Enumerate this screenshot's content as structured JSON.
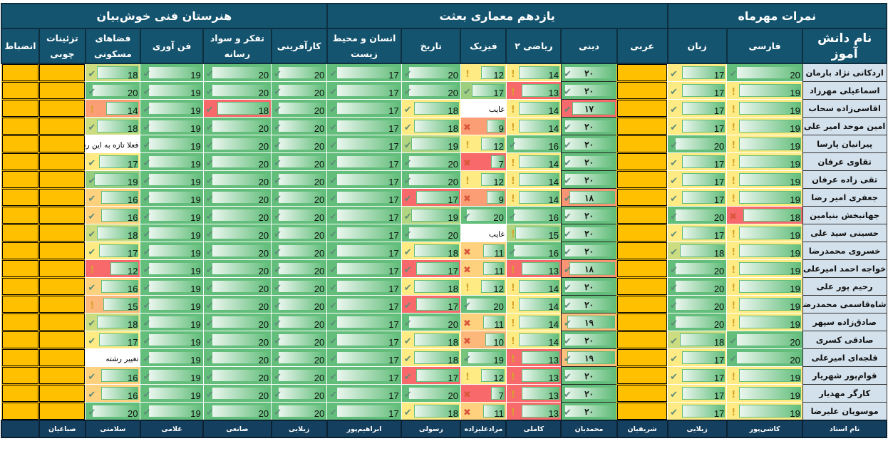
{
  "titles": {
    "group1": "نمرات مهرماه",
    "group2": "یازدهم معماری بعثت",
    "group3": "هنرستان فنی خوش‌بیان"
  },
  "name_header": "نام دانش آموز",
  "teacher_label": "نام استاد",
  "students": [
    "اردکانی نژاد بارمان",
    "اسماعیلی مهرزاد",
    "اقاسی‌زاده سحاب",
    "امین موحد  امیر علی",
    "پیرانیان پارسا",
    "تقاوی عرفان",
    "تقی زاده  عرفان",
    "جعفری  امیر رضا",
    "جهانبخش بنیامین",
    "حسینی سید علی",
    "خسروی محمدرضا",
    "خواجه احمد امیرعلی",
    "رحیم پور علی",
    "شاه‌قاسمی محمدرضا",
    "صادق‌زاده سپهر",
    "صادقی کسری",
    "قلجه‌ای امیرعلی",
    "قوام‌پور شهریار",
    "کارگر  مهدیار",
    "موسویان علیرضا"
  ],
  "colors": {
    "low": "#f8696b",
    "mid": "#ffeb84",
    "high": "#63be7b",
    "empty": "#ffc000"
  },
  "columns": [
    {
      "key": "farsi",
      "header": "فارسی",
      "teacher": "کاشی‌پور",
      "type": "bar",
      "icon_check_min": 20,
      "icon_warn_min": 19,
      "values": [
        20,
        19,
        19,
        19,
        19,
        19,
        19,
        19,
        18,
        19,
        19,
        19,
        19,
        19,
        19,
        20,
        20,
        19,
        19,
        19
      ]
    },
    {
      "key": "zaban",
      "header": "زبان",
      "teacher": "زیلایی",
      "type": "bar",
      "icon_check_min": 0,
      "icon_warn_min": 0,
      "values": [
        17,
        17,
        17,
        17,
        20,
        17,
        17,
        17,
        20,
        17,
        18,
        20,
        20,
        20,
        20,
        18,
        17,
        17,
        17,
        17
      ]
    },
    {
      "key": "arabi",
      "header": "عربی",
      "teacher": "شریفیان",
      "type": "empty"
    },
    {
      "key": "dini",
      "header": "دینی",
      "teacher": "محمدیان",
      "type": "dini",
      "icon_check_min": 0,
      "icon_warn_min": 0,
      "values": [
        "۲۰",
        "۲۰",
        "۱۷",
        "۲۰",
        "۲۰",
        "۲۰",
        "۲۰",
        "۱۸",
        "۲۰",
        "۲۰",
        "۲۰",
        "۱۸",
        "۲۰",
        "۲۰",
        "۱۹",
        "۲۰",
        "۱۹",
        "۲۰",
        "۲۰",
        "۲۰"
      ]
    },
    {
      "key": "riazi",
      "header": "ریاضی ۲",
      "teacher": "کاملی",
      "type": "bar",
      "icon_check_min": 16,
      "icon_warn_min": 13,
      "values": [
        14,
        13,
        14,
        14,
        16,
        14,
        14,
        14,
        16,
        15,
        16,
        13,
        14,
        14,
        14,
        14,
        13,
        13,
        13,
        13
      ]
    },
    {
      "key": "fizik",
      "header": "فیزیک",
      "teacher": "مرادعلیزاده",
      "type": "bar",
      "icon_check_min": 17,
      "icon_warn_min": 12,
      "values": [
        12,
        17,
        "غایب",
        9,
        12,
        7,
        12,
        9,
        20,
        "غایب",
        11,
        11,
        12,
        20,
        11,
        10,
        19,
        12,
        7,
        11
      ]
    },
    {
      "key": "tarikh",
      "header": "تاریخ",
      "teacher": "رسولی",
      "type": "bar",
      "icon_check_min": 0,
      "icon_warn_min": 0,
      "values": [
        20,
        20,
        18,
        18,
        19,
        20,
        20,
        17,
        19,
        20,
        18,
        17,
        18,
        17,
        20,
        18,
        18,
        17,
        20,
        18
      ]
    },
    {
      "key": "ensan",
      "header": "انسان  و محیط زیست",
      "teacher": "ابراهیم‌پور",
      "type": "bar",
      "icon_check_min": 0,
      "icon_warn_min": 0,
      "values": [
        17,
        17,
        17,
        17,
        17,
        17,
        17,
        17,
        17,
        17,
        17,
        17,
        17,
        17,
        17,
        17,
        17,
        17,
        17,
        17
      ]
    },
    {
      "key": "karafarini",
      "header": "کارآفرینی",
      "teacher": "زیلایی",
      "type": "bar",
      "icon_check_min": 0,
      "icon_warn_min": 0,
      "values": [
        20,
        20,
        20,
        20,
        20,
        20,
        20,
        20,
        20,
        20,
        20,
        20,
        20,
        20,
        20,
        20,
        20,
        20,
        20,
        20
      ]
    },
    {
      "key": "tafakor",
      "header": "تفکر و سواد رسانه",
      "teacher": "صانعی",
      "type": "bar",
      "icon_check_min": 0,
      "icon_warn_min": 0,
      "values": [
        20,
        20,
        18,
        20,
        20,
        20,
        20,
        20,
        20,
        20,
        20,
        20,
        20,
        20,
        20,
        20,
        20,
        20,
        20,
        20
      ]
    },
    {
      "key": "fanavari",
      "header": "فن آوری",
      "teacher": "غلامی",
      "type": "bar",
      "icon_check_min": 0,
      "icon_warn_min": 0,
      "values": [
        19,
        19,
        19,
        19,
        19,
        19,
        19,
        19,
        19,
        19,
        19,
        19,
        19,
        19,
        19,
        19,
        19,
        19,
        19,
        19
      ]
    },
    {
      "key": "fazaha",
      "header": "فضاهای مسکونی",
      "teacher": "سلامتی",
      "type": "bar",
      "icon_check_min": 16,
      "icon_warn_min": 12,
      "values": [
        18,
        20,
        14,
        18,
        "فعلا تازه به این رشته اومده",
        17,
        19,
        16,
        16,
        18,
        17,
        12,
        16,
        15,
        18,
        17,
        "تغییر رشته",
        16,
        16,
        20
      ]
    },
    {
      "key": "tazinat",
      "header": "تزئینات چوبی",
      "teacher": "صباغیان",
      "type": "empty"
    },
    {
      "key": "enzebat",
      "header": "انضباط",
      "teacher": "",
      "type": "empty"
    }
  ]
}
